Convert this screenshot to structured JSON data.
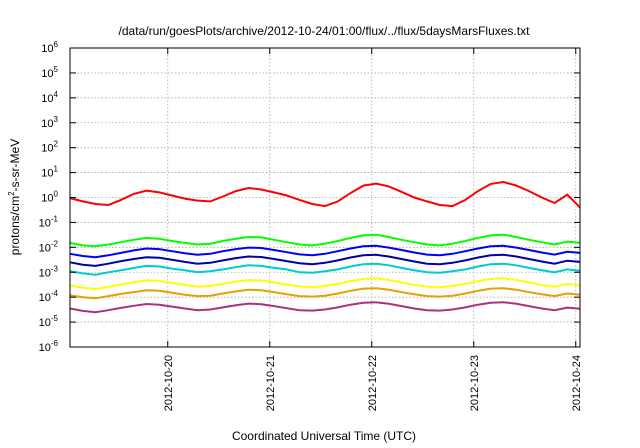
{
  "chart_data": {
    "type": "line",
    "title": "/data/run/goesPlots/archive/2012-10-24/01:00/flux/../flux/5daysMarsFluxes.txt",
    "xlabel": "Coordinated Universal Time (UTC)",
    "ylabel": {
      "before": "protons/cm",
      "sup": "2",
      "after": "-s-sr-MeV"
    },
    "yscale": "log",
    "ylim": [
      1e-06,
      1000000.0
    ],
    "xlim": [
      "2012-10-19 01:00",
      "2012-10-24 01:00"
    ],
    "grid": true,
    "x_ticks": [
      "2012-10-20",
      "2012-10-21",
      "2012-10-22",
      "2012-10-23",
      "2012-10-24"
    ],
    "y_ticks": [
      {
        "base": "10",
        "exp": "-6"
      },
      {
        "base": "10",
        "exp": "-5"
      },
      {
        "base": "10",
        "exp": "-4"
      },
      {
        "base": "10",
        "exp": "-3"
      },
      {
        "base": "10",
        "exp": "-2"
      },
      {
        "base": "10",
        "exp": "-1"
      },
      {
        "base": "10",
        "exp": "0"
      },
      {
        "base": "10",
        "exp": "1"
      },
      {
        "base": "10",
        "exp": "2"
      },
      {
        "base": "10",
        "exp": "3"
      },
      {
        "base": "10",
        "exp": "4"
      },
      {
        "base": "10",
        "exp": "5"
      },
      {
        "base": "10",
        "exp": "6"
      }
    ],
    "x": [
      "2012-10-19 01:00",
      "2012-10-19 04:00",
      "2012-10-19 07:00",
      "2012-10-19 10:00",
      "2012-10-19 13:00",
      "2012-10-19 16:00",
      "2012-10-19 19:00",
      "2012-10-19 22:00",
      "2012-10-20 01:00",
      "2012-10-20 04:00",
      "2012-10-20 07:00",
      "2012-10-20 10:00",
      "2012-10-20 13:00",
      "2012-10-20 16:00",
      "2012-10-20 19:00",
      "2012-10-20 22:00",
      "2012-10-21 01:00",
      "2012-10-21 04:00",
      "2012-10-21 07:00",
      "2012-10-21 10:00",
      "2012-10-21 13:00",
      "2012-10-21 16:00",
      "2012-10-21 19:00",
      "2012-10-21 22:00",
      "2012-10-22 01:00",
      "2012-10-22 04:00",
      "2012-10-22 07:00",
      "2012-10-22 10:00",
      "2012-10-22 13:00",
      "2012-10-22 16:00",
      "2012-10-22 19:00",
      "2012-10-22 22:00",
      "2012-10-23 01:00",
      "2012-10-23 04:00",
      "2012-10-23 07:00",
      "2012-10-23 10:00",
      "2012-10-23 13:00",
      "2012-10-23 16:00",
      "2012-10-23 19:00",
      "2012-10-23 22:00",
      "2012-10-24 01:00"
    ],
    "series": [
      {
        "color": "#ff0000",
        "values": [
          0.95,
          0.7,
          0.55,
          0.5,
          0.8,
          1.4,
          1.9,
          1.6,
          1.2,
          0.9,
          0.75,
          0.7,
          1.1,
          1.8,
          2.4,
          2.1,
          1.6,
          1.2,
          0.8,
          0.55,
          0.45,
          0.7,
          1.5,
          3.0,
          3.6,
          2.8,
          1.7,
          1.0,
          0.7,
          0.5,
          0.45,
          0.8,
          1.8,
          3.5,
          4.2,
          3.0,
          1.8,
          1.0,
          0.6,
          1.3,
          0.4
        ]
      },
      {
        "color": "#00ff00",
        "values": [
          0.015,
          0.012,
          0.011,
          0.013,
          0.016,
          0.02,
          0.024,
          0.022,
          0.018,
          0.015,
          0.013,
          0.014,
          0.018,
          0.022,
          0.026,
          0.025,
          0.02,
          0.016,
          0.013,
          0.012,
          0.014,
          0.018,
          0.024,
          0.03,
          0.032,
          0.026,
          0.02,
          0.016,
          0.013,
          0.012,
          0.014,
          0.018,
          0.024,
          0.03,
          0.032,
          0.026,
          0.02,
          0.016,
          0.013,
          0.017,
          0.015
        ]
      },
      {
        "color": "#0000ff",
        "values": [
          0.0055,
          0.0045,
          0.004,
          0.0048,
          0.006,
          0.0075,
          0.009,
          0.0085,
          0.007,
          0.0058,
          0.005,
          0.0055,
          0.007,
          0.0085,
          0.0098,
          0.0094,
          0.0078,
          0.0064,
          0.0052,
          0.0048,
          0.0055,
          0.007,
          0.009,
          0.011,
          0.0115,
          0.0098,
          0.0078,
          0.0062,
          0.0051,
          0.0048,
          0.0055,
          0.007,
          0.009,
          0.011,
          0.0115,
          0.0098,
          0.0078,
          0.0062,
          0.0051,
          0.0066,
          0.006
        ]
      },
      {
        "color": "#0000aa",
        "values": [
          0.0025,
          0.002,
          0.0018,
          0.0022,
          0.0028,
          0.0034,
          0.004,
          0.0038,
          0.0032,
          0.0026,
          0.0022,
          0.0024,
          0.003,
          0.0037,
          0.0043,
          0.0041,
          0.0034,
          0.0028,
          0.0023,
          0.0021,
          0.0024,
          0.003,
          0.0039,
          0.0048,
          0.005,
          0.0043,
          0.0034,
          0.0027,
          0.0022,
          0.0021,
          0.0024,
          0.003,
          0.0039,
          0.0048,
          0.005,
          0.0043,
          0.0034,
          0.0027,
          0.0022,
          0.0029,
          0.0026
        ]
      },
      {
        "color": "#00cccc",
        "values": [
          0.0011,
          0.0009,
          0.0008,
          0.001,
          0.0012,
          0.0015,
          0.0018,
          0.0017,
          0.0014,
          0.0012,
          0.001,
          0.0011,
          0.0013,
          0.0016,
          0.0019,
          0.0018,
          0.0015,
          0.0013,
          0.001,
          0.00095,
          0.0011,
          0.0013,
          0.0017,
          0.0021,
          0.0022,
          0.0019,
          0.0015,
          0.0012,
          0.001,
          0.00095,
          0.0011,
          0.0013,
          0.0017,
          0.0021,
          0.0022,
          0.0019,
          0.0015,
          0.0012,
          0.001,
          0.0013,
          0.00115
        ]
      },
      {
        "color": "#ffff00",
        "values": [
          0.0003,
          0.00024,
          0.00021,
          0.00026,
          0.00032,
          0.0004,
          0.00047,
          0.00045,
          0.00037,
          0.00031,
          0.00026,
          0.00028,
          0.00034,
          0.00042,
          0.00049,
          0.00047,
          0.00039,
          0.00032,
          0.00027,
          0.00025,
          0.00028,
          0.00034,
          0.00044,
          0.00054,
          0.00057,
          0.00049,
          0.00039,
          0.00031,
          0.00026,
          0.00025,
          0.00028,
          0.00034,
          0.00044,
          0.00054,
          0.00057,
          0.00049,
          0.00039,
          0.00031,
          0.00026,
          0.00034,
          0.0003
        ]
      },
      {
        "color": "#e8a000",
        "values": [
          0.00012,
          0.0001,
          9e-05,
          0.00011,
          0.000135,
          0.00016,
          0.00019,
          0.00018,
          0.00015,
          0.000125,
          0.00011,
          0.000115,
          0.00014,
          0.00017,
          0.0002,
          0.00019,
          0.00016,
          0.00013,
          0.00011,
          0.000105,
          0.000115,
          0.00014,
          0.00018,
          0.00022,
          0.00023,
          0.0002,
          0.00016,
          0.00013,
          0.00011,
          0.000105,
          0.000115,
          0.00014,
          0.00018,
          0.00022,
          0.00023,
          0.0002,
          0.00016,
          0.00013,
          0.00011,
          0.00014,
          0.000125
        ]
      },
      {
        "color": "#aa3377",
        "values": [
          3.5e-05,
          2.8e-05,
          2.5e-05,
          3e-05,
          3.7e-05,
          4.5e-05,
          5.3e-05,
          5e-05,
          4.2e-05,
          3.5e-05,
          3e-05,
          3.2e-05,
          3.9e-05,
          4.7e-05,
          5.5e-05,
          5.2e-05,
          4.4e-05,
          3.6e-05,
          3e-05,
          2.9e-05,
          3.2e-05,
          3.9e-05,
          5e-05,
          6e-05,
          6.3e-05,
          5.4e-05,
          4.4e-05,
          3.5e-05,
          3e-05,
          2.9e-05,
          3.2e-05,
          3.9e-05,
          5e-05,
          6e-05,
          6.3e-05,
          5.4e-05,
          4.4e-05,
          3.5e-05,
          3e-05,
          3.8e-05,
          3.4e-05
        ]
      }
    ]
  }
}
